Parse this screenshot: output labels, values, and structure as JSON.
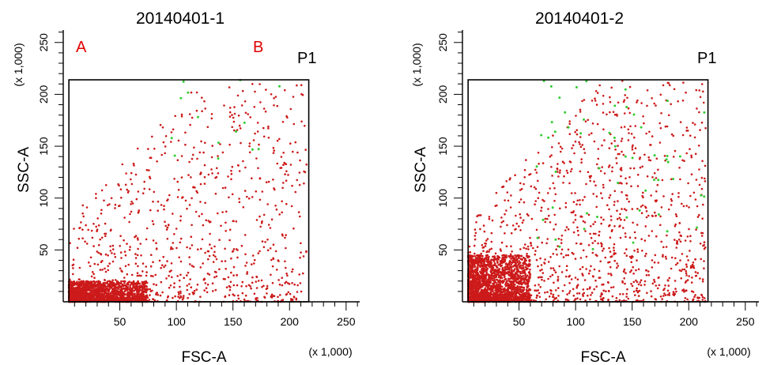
{
  "panel_labels": {
    "a": "A",
    "b": "B"
  },
  "chart_data": [
    {
      "type": "scatter",
      "title": "20140401-1",
      "xlabel": "FSC-A",
      "ylabel": "SSC-A",
      "x_scale_note": "(x 1,000)",
      "y_scale_note": "(x 1,000)",
      "xlim": [
        0,
        262
      ],
      "ylim": [
        0,
        262
      ],
      "xticks": [
        50,
        100,
        150,
        200,
        250
      ],
      "yticks": [
        50,
        100,
        150,
        200,
        250
      ],
      "gate": {
        "name": "P1",
        "x": [
          5,
          217
        ],
        "y": [
          0,
          214
        ]
      },
      "colors": {
        "in_gate": "#cc1a1a",
        "out_gate": "#33cc33"
      },
      "distribution": {
        "core_x": [
          5,
          75
        ],
        "core_y": [
          0,
          20
        ],
        "spread_max_x": 215,
        "spread_max_y": 210
      },
      "series": [
        {
          "n_points": 2600,
          "color": "#cc1a1a",
          "summary": "dense cluster FSC 5-75, SSC 0-20; sparse spread up to FSC 215, SSC 210"
        },
        {
          "n_points": 14,
          "color": "#33cc33",
          "summary": "sparse points FSC 90-200, SSC 130-215"
        }
      ]
    },
    {
      "type": "scatter",
      "title": "20140401-2",
      "xlabel": "FSC-A",
      "ylabel": "SSC-A",
      "x_scale_note": "(x 1,000)",
      "y_scale_note": "(x 1,000)",
      "xlim": [
        0,
        262
      ],
      "ylim": [
        0,
        262
      ],
      "xticks": [
        50,
        100,
        150,
        200,
        250
      ],
      "yticks": [
        50,
        100,
        150,
        200,
        250
      ],
      "gate": {
        "name": "P1",
        "x": [
          5,
          217
        ],
        "y": [
          0,
          214
        ]
      },
      "colors": {
        "in_gate": "#cc1a1a",
        "out_gate": "#33cc33"
      },
      "distribution": {
        "core_x": [
          5,
          60
        ],
        "core_y": [
          0,
          45
        ],
        "spread_max_x": 215,
        "spread_max_y": 214
      },
      "series": [
        {
          "n_points": 3200,
          "color": "#cc1a1a",
          "summary": "dense cluster FSC 5-60, SSC 0-45; broad spread up to FSC 215, SSC 214"
        },
        {
          "n_points": 55,
          "color": "#33cc33",
          "summary": "scattered points FSC 60-215, SSC 50-214"
        }
      ]
    }
  ]
}
